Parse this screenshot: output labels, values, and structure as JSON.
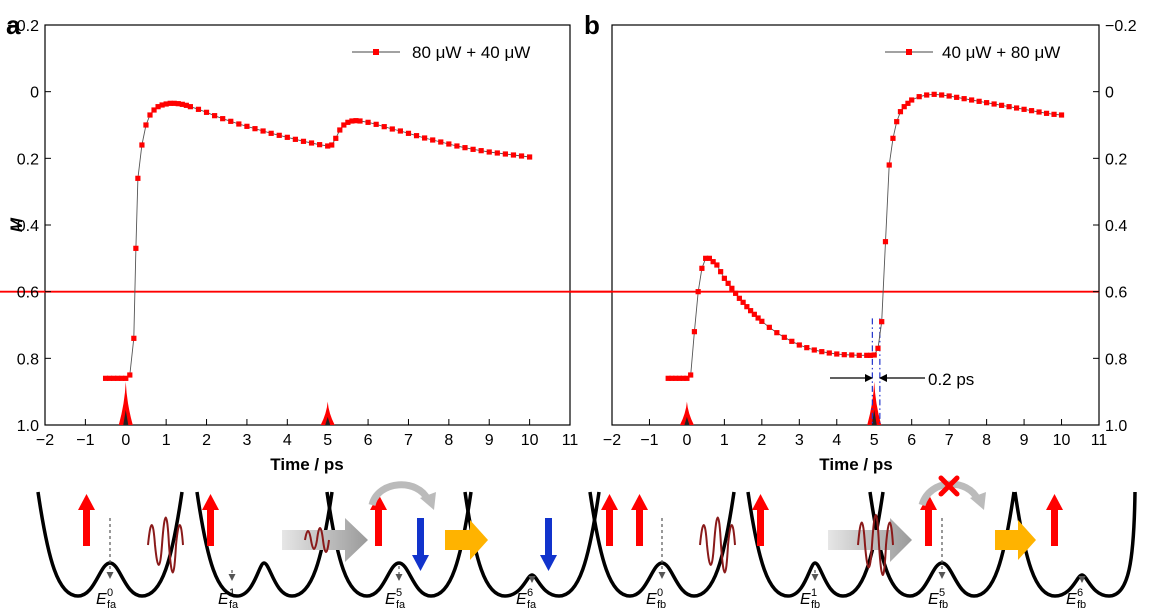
{
  "colors": {
    "data": "#ff0000",
    "threshold": "#ff0000",
    "dashdot": "#2233cc",
    "spin_up": "#ff0000",
    "spin_down": "#1133cc",
    "arrow_gold": "#ffb300",
    "arrow_gray": "#9a9a9a",
    "cross": "#ff0000"
  },
  "panels": [
    {
      "id": "a",
      "letter": "a"
    },
    {
      "id": "b",
      "letter": "b"
    }
  ],
  "annotation": {
    "width_label": "0.2 ps"
  },
  "schematics": {
    "a": {
      "labels": [
        {
          "base": "E",
          "sup": "0",
          "sub": "fa"
        },
        {
          "base": "E",
          "sup": "1",
          "sub": "fa"
        },
        {
          "base": "E",
          "sup": "5",
          "sub": "fa"
        },
        {
          "base": "E",
          "sup": "6",
          "sub": "fa"
        }
      ]
    },
    "b": {
      "labels": [
        {
          "base": "E",
          "sup": "0",
          "sub": "fb"
        },
        {
          "base": "E",
          "sup": "1",
          "sub": "fb"
        },
        {
          "base": "E",
          "sup": "5",
          "sub": "fb"
        },
        {
          "base": "E",
          "sup": "6",
          "sub": "fb"
        }
      ]
    }
  },
  "chart_data": [
    {
      "panel": "a",
      "type": "line",
      "xlabel": "Time / ps",
      "ylabel": "M",
      "xlim": [
        -2,
        11
      ],
      "ylim": [
        -0.2,
        1.0
      ],
      "y_inverted": true,
      "xticks": [
        -2,
        -1,
        0,
        1,
        2,
        3,
        4,
        5,
        6,
        7,
        8,
        9,
        10,
        11
      ],
      "yticks": [
        "−0.2",
        "0",
        "0.2",
        "0.4",
        "0.6",
        "0.8",
        "1.0"
      ],
      "ytick_values": [
        -0.2,
        0,
        0.2,
        0.4,
        0.6,
        0.8,
        1.0
      ],
      "yaxis_side": "left",
      "legend": {
        "label": "80 μW + 40 μW",
        "position": "top-right"
      },
      "threshold_y": 0.6,
      "pulses": [
        {
          "t": 0,
          "height": 0.13
        },
        {
          "t": 5,
          "height": 0.07
        }
      ],
      "series": [
        {
          "name": "80 μW + 40 μW",
          "x": [
            -0.5,
            -0.4,
            -0.3,
            -0.2,
            -0.1,
            0.0,
            0.1,
            0.2,
            0.25,
            0.3,
            0.4,
            0.5,
            0.6,
            0.7,
            0.8,
            0.9,
            1.0,
            1.1,
            1.2,
            1.3,
            1.4,
            1.5,
            1.6,
            1.8,
            2.0,
            2.2,
            2.4,
            2.6,
            2.8,
            3.0,
            3.2,
            3.4,
            3.6,
            3.8,
            4.0,
            4.2,
            4.4,
            4.6,
            4.8,
            5.0,
            5.1,
            5.2,
            5.3,
            5.4,
            5.5,
            5.6,
            5.7,
            5.8,
            6.0,
            6.2,
            6.4,
            6.6,
            6.8,
            7.0,
            7.2,
            7.4,
            7.6,
            7.8,
            8.0,
            8.2,
            8.4,
            8.6,
            8.8,
            9.0,
            9.2,
            9.4,
            9.6,
            9.8,
            10.0
          ],
          "y": [
            0.86,
            0.86,
            0.86,
            0.86,
            0.86,
            0.86,
            0.85,
            0.74,
            0.47,
            0.26,
            0.16,
            0.1,
            0.07,
            0.055,
            0.045,
            0.04,
            0.037,
            0.035,
            0.035,
            0.036,
            0.038,
            0.041,
            0.045,
            0.053,
            0.062,
            0.072,
            0.081,
            0.089,
            0.097,
            0.104,
            0.111,
            0.118,
            0.125,
            0.131,
            0.137,
            0.143,
            0.149,
            0.154,
            0.159,
            0.163,
            0.16,
            0.14,
            0.115,
            0.1,
            0.092,
            0.088,
            0.087,
            0.088,
            0.092,
            0.098,
            0.105,
            0.112,
            0.118,
            0.125,
            0.132,
            0.139,
            0.145,
            0.151,
            0.157,
            0.163,
            0.168,
            0.173,
            0.177,
            0.181,
            0.184,
            0.187,
            0.19,
            0.193,
            0.196
          ]
        }
      ]
    },
    {
      "panel": "b",
      "type": "line",
      "xlabel": "Time / ps",
      "ylabel": "",
      "xlim": [
        -2,
        11
      ],
      "ylim": [
        -0.2,
        1.0
      ],
      "y_inverted": true,
      "xticks": [
        -2,
        -1,
        0,
        1,
        2,
        3,
        4,
        5,
        6,
        7,
        8,
        9,
        10,
        11
      ],
      "yticks": [
        "−0.2",
        "0",
        "0.2",
        "0.4",
        "0.6",
        "0.8",
        "1.0"
      ],
      "ytick_values": [
        -0.2,
        0,
        0.2,
        0.4,
        0.6,
        0.8,
        1.0
      ],
      "yaxis_side": "right",
      "legend": {
        "label": "40 μW + 80 μW",
        "position": "top-right"
      },
      "threshold_y": 0.6,
      "pulses": [
        {
          "t": 0,
          "height": 0.07
        },
        {
          "t": 5,
          "height": 0.13
        }
      ],
      "markers": [
        {
          "x": 4.95
        },
        {
          "x": 5.15
        }
      ],
      "series": [
        {
          "name": "40 μW + 80 μW",
          "x": [
            -0.5,
            -0.4,
            -0.3,
            -0.2,
            -0.1,
            0.0,
            0.1,
            0.2,
            0.3,
            0.4,
            0.5,
            0.6,
            0.7,
            0.8,
            0.9,
            1.0,
            1.1,
            1.2,
            1.3,
            1.4,
            1.5,
            1.6,
            1.7,
            1.8,
            1.9,
            2.0,
            2.2,
            2.4,
            2.6,
            2.8,
            3.0,
            3.2,
            3.4,
            3.6,
            3.8,
            4.0,
            4.2,
            4.4,
            4.6,
            4.8,
            4.9,
            5.0,
            5.1,
            5.2,
            5.3,
            5.4,
            5.5,
            5.6,
            5.7,
            5.8,
            5.9,
            6.0,
            6.2,
            6.4,
            6.6,
            6.8,
            7.0,
            7.2,
            7.4,
            7.6,
            7.8,
            8.0,
            8.2,
            8.4,
            8.6,
            8.8,
            9.0,
            9.2,
            9.4,
            9.6,
            9.8,
            10.0
          ],
          "y": [
            0.86,
            0.86,
            0.86,
            0.86,
            0.86,
            0.86,
            0.85,
            0.72,
            0.6,
            0.53,
            0.5,
            0.5,
            0.51,
            0.52,
            0.54,
            0.56,
            0.575,
            0.59,
            0.605,
            0.62,
            0.632,
            0.645,
            0.657,
            0.668,
            0.679,
            0.689,
            0.707,
            0.723,
            0.737,
            0.749,
            0.76,
            0.768,
            0.775,
            0.78,
            0.784,
            0.787,
            0.789,
            0.79,
            0.791,
            0.791,
            0.791,
            0.79,
            0.77,
            0.69,
            0.45,
            0.22,
            0.14,
            0.09,
            0.06,
            0.045,
            0.035,
            0.025,
            0.015,
            0.01,
            0.008,
            0.01,
            0.013,
            0.017,
            0.021,
            0.025,
            0.029,
            0.033,
            0.037,
            0.041,
            0.045,
            0.049,
            0.053,
            0.057,
            0.061,
            0.065,
            0.068,
            0.07
          ]
        }
      ]
    }
  ]
}
